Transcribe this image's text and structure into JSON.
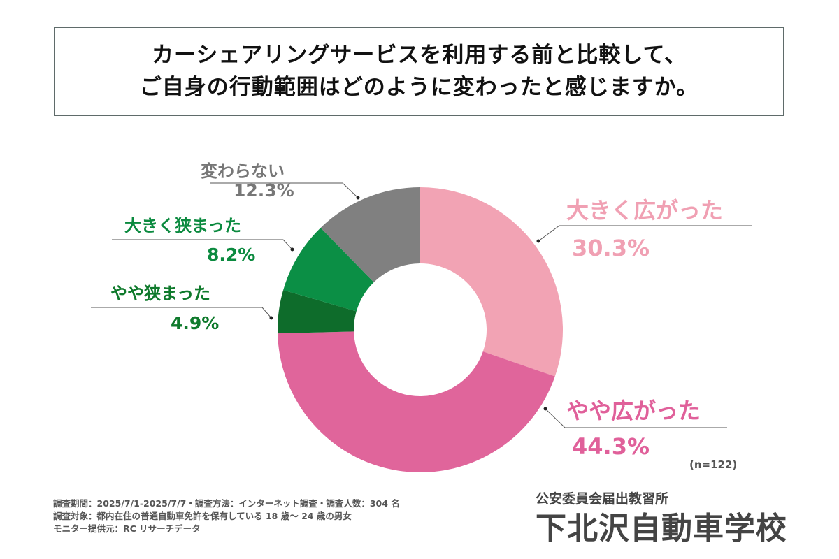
{
  "chart_data": {
    "type": "pie",
    "donut": true,
    "title": [
      "カーシェアリングサービスを利用する前と比較して、",
      "ご自身の行動範囲はどのように変わったと感じますか。"
    ],
    "slices": [
      {
        "label": "大きく広がった",
        "value": 30.3,
        "display": "30.3%",
        "color": "#f2a3b4"
      },
      {
        "label": "やや広がった",
        "value": 44.3,
        "display": "44.3%",
        "color": "#e0659b"
      },
      {
        "label": "やや狭まった",
        "value": 4.9,
        "display": "4.9%",
        "color": "#0e6c2b"
      },
      {
        "label": "大きく狭まった",
        "value": 8.2,
        "display": "8.2%",
        "color": "#0b8f45"
      },
      {
        "label": "変わらない",
        "value": 12.3,
        "display": "12.3%",
        "color": "#808080"
      }
    ],
    "label_colors": [
      "#f0a0b3",
      "#e0609a",
      "#0f7a2c",
      "#0b8a3f",
      "#777777"
    ],
    "n_note": "(n=122)"
  },
  "footer": [
    "調査期間：2025/7/1-2025/7/7・調査方法：インターネット調査・調査人数：304 名",
    "調査対象：都内在住の普通自動車免許を保有している 18 歳～ 24 歳の男女",
    "モニター提供元：RC リサーチデータ"
  ],
  "brand": {
    "sub": "公安委員会届出教習所",
    "name": "下北沢自動車学校"
  }
}
